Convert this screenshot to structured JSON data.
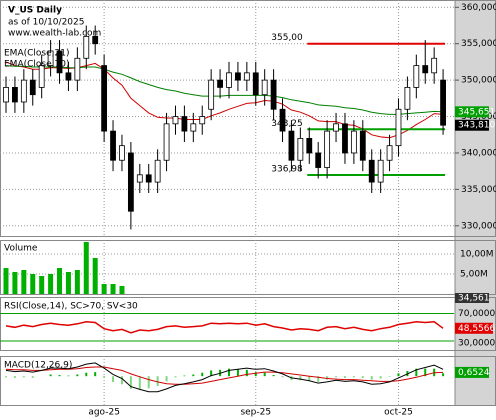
{
  "chart_data": [
    {
      "type": "candlestick",
      "title": "V_US Daily",
      "subtitle": "as of 10/10/2025",
      "source": "www.wealth-lab.com",
      "categories": [
        null,
        null,
        null,
        null,
        null,
        null,
        null,
        null,
        null,
        null,
        null,
        "ago-25",
        null,
        null,
        null,
        null,
        null,
        null,
        null,
        null,
        null,
        null,
        null,
        null,
        null,
        null,
        null,
        null,
        "sep-25",
        null,
        null,
        null,
        null,
        null,
        null,
        null,
        null,
        null,
        null,
        null,
        null,
        null,
        null,
        null,
        "oct-25",
        null,
        null,
        null,
        null,
        null
      ],
      "open": [
        347,
        349,
        347,
        350,
        349,
        352,
        354,
        351,
        350,
        353,
        356,
        352,
        343,
        339,
        340,
        336,
        337,
        336,
        339,
        344,
        345,
        343,
        344,
        346,
        350,
        349,
        351,
        350,
        351,
        348,
        350,
        346,
        343,
        339,
        342,
        340,
        338,
        343,
        344,
        340,
        343,
        339,
        336,
        339,
        341,
        346,
        349,
        352,
        351,
        350
      ],
      "high": [
        350.5,
        350.5,
        351.5,
        351.5,
        353.5,
        355.5,
        355.5,
        352.5,
        354.5,
        357.5,
        357.5,
        353.5,
        344.5,
        342.5,
        341.5,
        338.5,
        338.5,
        340.5,
        345.5,
        346.5,
        346.5,
        345.5,
        346.5,
        351.5,
        351.5,
        352.5,
        352.5,
        352.5,
        352.5,
        351.5,
        351.5,
        347.5,
        344.5,
        343.5,
        343.5,
        341.5,
        344.5,
        345.5,
        345.5,
        344.5,
        344.5,
        340.5,
        340.5,
        342.5,
        347.5,
        350.5,
        353.5,
        355.5,
        354.5,
        351.5
      ],
      "low": [
        345.5,
        345.5,
        345.5,
        346.5,
        347.5,
        350.5,
        349.5,
        348.5,
        348.5,
        351.5,
        353.5,
        341.5,
        337.5,
        337.5,
        329.5,
        334.5,
        334.5,
        334.5,
        337.5,
        342.5,
        341.5,
        341.5,
        342.5,
        344.5,
        347.5,
        347.5,
        348.5,
        348.5,
        346.5,
        346.5,
        344.5,
        341.5,
        337.5,
        337.5,
        338.5,
        336.5,
        336.5,
        341.5,
        338.5,
        338.5,
        337.5,
        334.5,
        334.5,
        337.5,
        339.5,
        344.5,
        347.5,
        349.5,
        349.5,
        342.5
      ],
      "close": [
        349,
        347,
        350,
        348,
        352,
        354,
        351,
        350,
        353,
        356,
        355,
        343,
        339,
        341,
        332,
        337,
        336,
        339,
        344,
        345,
        343,
        344,
        345,
        350,
        349,
        351,
        350,
        351,
        348,
        350,
        346,
        343,
        339,
        342,
        340,
        338,
        343,
        344,
        340,
        343,
        339,
        336,
        339,
        341,
        346,
        349,
        352,
        351,
        353,
        343.81
      ],
      "series": [
        {
          "name": "EMA(Close,21)",
          "color": "#d00000",
          "values": [
            352.5,
            352,
            351.8,
            351.5,
            351.5,
            351.7,
            351.7,
            351.6,
            351.7,
            352,
            352.3,
            351.5,
            350.3,
            349.3,
            347.5,
            346.5,
            345.5,
            344.9,
            344.8,
            344.8,
            344.6,
            344.6,
            344.6,
            345.1,
            345.5,
            346,
            346.4,
            346.8,
            346.9,
            347.2,
            347.1,
            346.7,
            345.9,
            345.6,
            345.1,
            344.4,
            344.3,
            344.3,
            343.9,
            343.8,
            343.3,
            342.5,
            342.2,
            342.1,
            342.5,
            343.1,
            343.9,
            344.6,
            345.4,
            345.3
          ]
        },
        {
          "name": "EMA(Close,70)",
          "color": "#008000",
          "values": [
            352,
            351.9,
            351.9,
            351.8,
            351.8,
            351.8,
            351.8,
            351.7,
            351.7,
            351.8,
            351.8,
            351.5,
            351.1,
            350.8,
            350.3,
            349.8,
            349.4,
            349,
            348.7,
            348.5,
            348.2,
            348,
            347.8,
            347.8,
            347.8,
            347.9,
            347.9,
            347.9,
            347.9,
            347.9,
            347.8,
            347.6,
            347.3,
            347.1,
            346.9,
            346.6,
            346.5,
            346.4,
            346.2,
            346.1,
            345.9,
            345.6,
            345.4,
            345.3,
            345.3,
            345.4,
            345.5,
            345.6,
            345.7,
            345.651
          ]
        }
      ],
      "ylim": [
        328.6,
        361
      ],
      "yticks": [
        {
          "value": 360,
          "label": "360,000"
        },
        {
          "value": 355,
          "label": "355,000"
        },
        {
          "value": 350,
          "label": "350,000"
        },
        {
          "value": 345,
          "label": "345,000"
        },
        {
          "value": 340,
          "label": "340,000"
        },
        {
          "value": 335,
          "label": "335,000"
        },
        {
          "value": 330,
          "label": "330,000"
        }
      ],
      "levels": [
        {
          "value": 355,
          "label": "355,00",
          "color": "#e00000"
        },
        {
          "value": 343.25,
          "label": "343,25",
          "color": "#00a000"
        },
        {
          "value": 336.98,
          "label": "336,98",
          "color": "#00a000"
        }
      ],
      "last_labels": [
        {
          "value": 345.651,
          "label": "345,651",
          "color": "#00a000"
        },
        {
          "value": 343.81,
          "label": "343,810",
          "color": "#000000"
        }
      ],
      "grid": true
    },
    {
      "type": "bar",
      "title": "Volume",
      "color": "#00b000",
      "values": [
        6.5,
        5.5,
        6,
        5,
        4.5,
        5,
        6.5,
        5.5,
        6,
        13,
        9,
        2.5,
        2.5,
        2,
        null,
        null,
        null,
        null,
        null,
        null,
        null,
        null,
        null,
        null,
        null,
        null,
        null,
        null,
        null,
        null,
        null,
        null,
        null,
        null,
        null,
        null,
        null,
        null,
        null,
        null,
        null,
        null,
        null,
        null,
        null,
        null,
        null,
        null,
        null,
        null
      ],
      "ylim": [
        0,
        13.5
      ],
      "yticks": [
        {
          "value": 10,
          "label": "10,00M"
        },
        {
          "value": 5,
          "label": "5,00M"
        }
      ],
      "last_label": "34,561"
    },
    {
      "type": "line",
      "title": "RSI(Close,14), SC>70, SV<30",
      "color": "#e00000",
      "values": [
        52,
        50,
        53,
        51,
        54,
        56,
        54,
        53,
        55,
        58,
        57,
        48,
        45,
        47,
        42,
        46,
        45,
        47,
        51,
        52,
        50,
        51,
        52,
        56,
        55,
        56,
        55,
        56,
        53,
        55,
        51,
        49,
        46,
        48,
        47,
        45,
        50,
        51,
        48,
        50,
        47,
        45,
        48,
        50,
        54,
        56,
        58,
        57,
        58,
        48.5566
      ],
      "ylim": [
        17,
        94
      ],
      "yticks": [
        {
          "value": 70,
          "label": "70,0000"
        },
        {
          "value": 30,
          "label": "30,0000"
        }
      ],
      "level_color": "#00a000",
      "last_label": "48,5566"
    },
    {
      "type": "macd",
      "title": "MACD(12,26,9)",
      "macd": [
        1.0,
        0.8,
        0.9,
        0.7,
        1.0,
        1.4,
        1.4,
        1.3,
        1.6,
        2.1,
        2.3,
        1.4,
        0.3,
        -0.4,
        -1.8,
        -2.3,
        -2.7,
        -2.7,
        -2.2,
        -1.6,
        -1.3,
        -1.0,
        -0.6,
        0.1,
        0.5,
        1.0,
        1.2,
        1.4,
        1.2,
        1.3,
        0.9,
        0.4,
        -0.3,
        -0.5,
        -0.8,
        -1.2,
        -1.0,
        -0.7,
        -0.9,
        -0.8,
        -1.0,
        -1.4,
        -1.3,
        -1.0,
        -0.3,
        0.4,
        1.1,
        1.5,
        1.9,
        1.2
      ],
      "signal": [
        1.2,
        1.1,
        1.1,
        1.0,
        1.0,
        1.1,
        1.2,
        1.2,
        1.3,
        1.5,
        1.6,
        1.6,
        1.3,
        1.0,
        0.4,
        -0.1,
        -0.6,
        -1.0,
        -1.3,
        -1.4,
        -1.4,
        -1.3,
        -1.2,
        -0.9,
        -0.6,
        -0.3,
        0.0,
        0.3,
        0.5,
        0.7,
        0.7,
        0.6,
        0.4,
        0.2,
        0.0,
        -0.2,
        -0.4,
        -0.5,
        -0.6,
        -0.6,
        -0.7,
        -0.8,
        -0.9,
        -0.9,
        -0.8,
        -0.5,
        -0.2,
        0.2,
        0.6,
        0.6524
      ],
      "histogram": [
        -0.2,
        -0.3,
        -0.2,
        -0.3,
        0.0,
        0.3,
        0.2,
        0.1,
        0.3,
        0.6,
        0.7,
        -0.2,
        -1.0,
        -1.4,
        -2.2,
        -2.2,
        -2.1,
        -1.7,
        -0.9,
        -0.2,
        0.1,
        0.3,
        0.6,
        1.0,
        1.1,
        1.3,
        1.2,
        1.1,
        0.7,
        0.6,
        0.2,
        -0.2,
        -0.7,
        -0.7,
        -0.8,
        -1.0,
        -0.6,
        -0.2,
        -0.3,
        -0.2,
        -0.3,
        -0.6,
        -0.4,
        -0.1,
        0.5,
        0.9,
        1.3,
        1.3,
        1.3,
        0.5
      ],
      "macd_color": "#000000",
      "signal_color": "#d00000",
      "hist_color": "#00b000",
      "ylim": [
        -5,
        3.5
      ],
      "last_label": "0,6524"
    }
  ]
}
